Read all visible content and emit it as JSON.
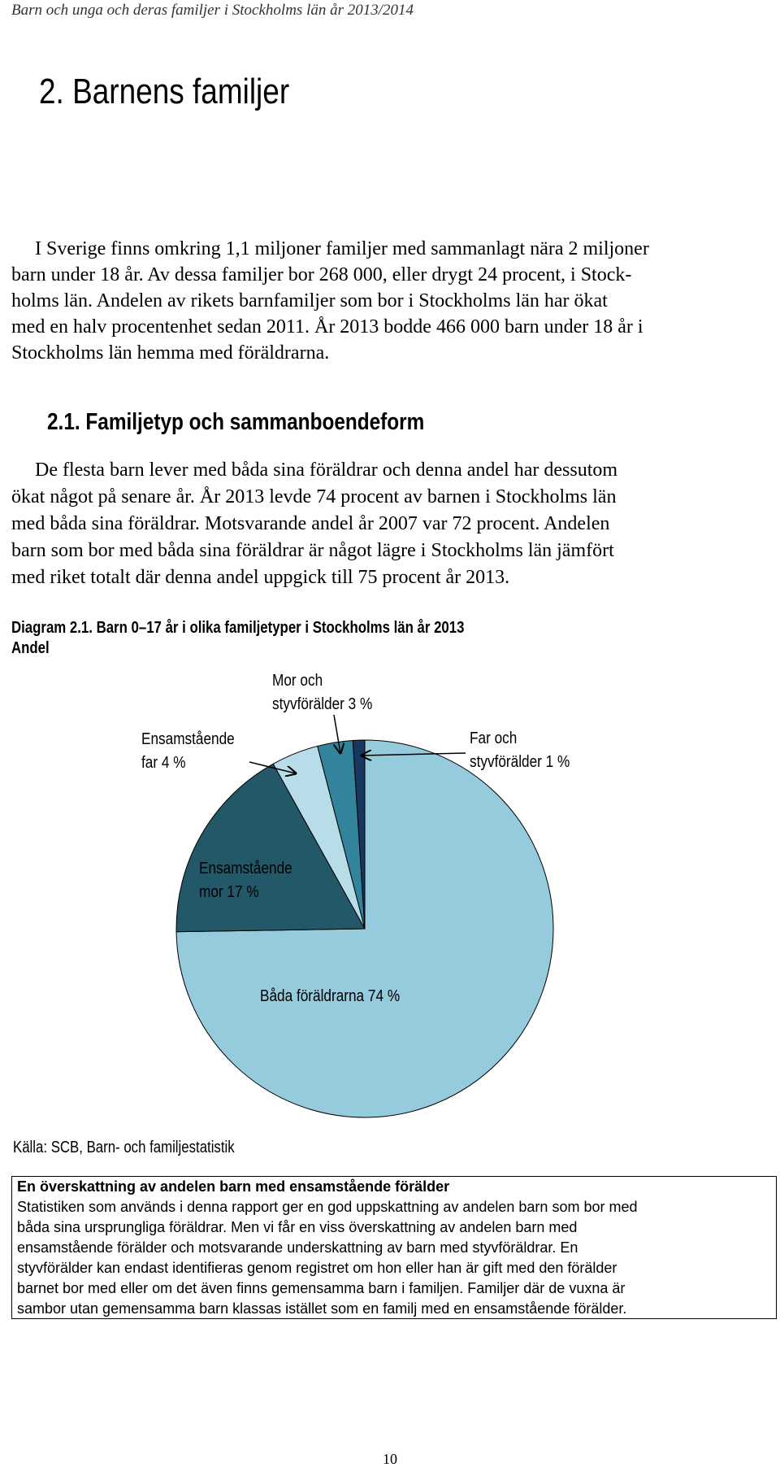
{
  "header": "Barn och unga och deras familjer i Stockholms län år 2013/2014",
  "title": "2. Barnens familjer",
  "intro": [
    "I Sverige finns omkring 1,1 miljoner familjer med sammanlagt nära 2 miljoner",
    "barn under 18 år. Av dessa familjer bor 268 000, eller drygt 24 procent, i Stock-",
    "holms län. Andelen av rikets barnfamiljer som bor i Stockholms län har ökat",
    "med en halv procentenhet sedan 2011. År 2013 bodde 466 000 barn under 18 år i",
    "Stockholms län hemma med föräldrarna."
  ],
  "section": {
    "heading": "2.1. Familjetyp och sammanboendeform",
    "lines": [
      "De flesta barn lever med båda sina föräldrar och denna andel har dessutom",
      "ökat något på senare år. År 2013 levde 74 procent av barnen i Stockholms län",
      "med båda sina föräldrar. Motsvarande andel år 2007 var 72 procent. Andelen",
      "barn som bor med båda sina föräldrar är något lägre i Stockholms län jämfört",
      "med riket totalt där denna andel uppgick till 75 procent år 2013."
    ]
  },
  "chart_data": {
    "type": "pie",
    "title": "Diagram 2.1. Barn 0–17 år i olika familjetyper i Stockholms län år 2013",
    "subtitle": "Andel",
    "categories": [
      "Båda föräldrarna",
      "Ensamstående mor",
      "Ensamstående far",
      "Mor och styvförälder",
      "Far och styvförälder"
    ],
    "values": [
      74,
      17,
      4,
      3,
      1
    ],
    "value_labels": [
      "74 %",
      "17 %",
      "4 %",
      "3 %",
      "1 %"
    ],
    "colors": [
      "#96cadd",
      "#235868",
      "#b7dde8",
      "#31849b",
      "#17375e"
    ],
    "source": "Källa: SCB, Barn- och familjestatistik"
  },
  "box": {
    "title": "En överskattning av andelen barn med ensamstående förälder",
    "lines": [
      "Statistiken som används i denna rapport ger en god uppskattning av andelen barn som bor med",
      "båda sina ursprungliga föräldrar. Men vi får en viss överskattning av andelen barn med",
      "ensamstående förälder och motsvarande underskattning av barn med styvföräldrar. En",
      "styvförälder kan endast identifieras genom registret om hon eller han är gift med den förälder",
      "barnet bor med eller om det även finns gemensamma barn i familjen. Familjer där de vuxna är",
      "sambor utan gemensamma barn klassas istället som en familj med en ensamstående förälder."
    ]
  },
  "page_number": "10"
}
